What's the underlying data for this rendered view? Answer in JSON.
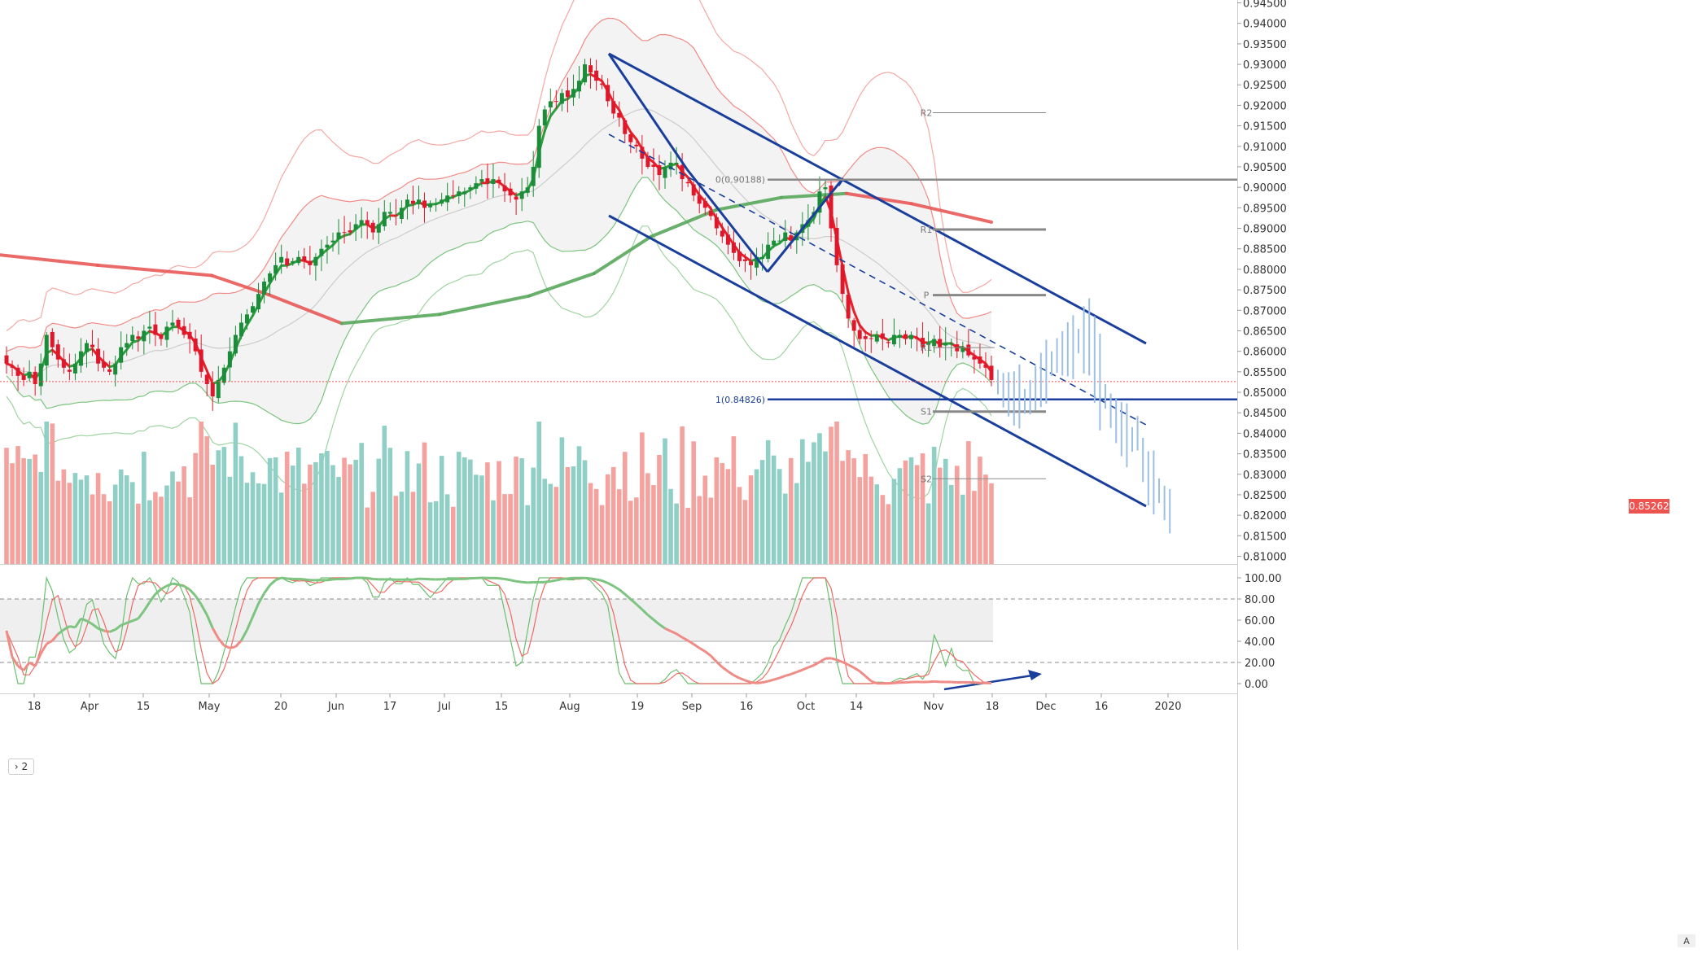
{
  "chart_data": {
    "type": "candlestick",
    "symbol_price": "0.85262",
    "price_axis": {
      "min": 0.81,
      "max": 0.945,
      "ticks": [
        "0.94500",
        "0.94000",
        "0.93500",
        "0.93000",
        "0.92500",
        "0.92000",
        "0.91500",
        "0.91000",
        "0.90500",
        "0.90000",
        "0.89500",
        "0.89000",
        "0.88500",
        "0.88000",
        "0.87500",
        "0.87000",
        "0.86500",
        "0.86000",
        "0.85500",
        "0.85000",
        "0.84500",
        "0.84000",
        "0.83500",
        "0.83000",
        "0.82500",
        "0.82000",
        "0.81500",
        "0.81000"
      ]
    },
    "oscillator_axis": {
      "min": 0,
      "max": 100,
      "ticks": [
        "100.00",
        "80.00",
        "60.00",
        "40.00",
        "20.00",
        "0.00"
      ],
      "dashed_levels": [
        80,
        20
      ],
      "solid_level": 40
    },
    "x_axis": {
      "labels": [
        "18",
        "Apr",
        "15",
        "May",
        "20",
        "Jun",
        "17",
        "Jul",
        "15",
        "Aug",
        "19",
        "Sep",
        "16",
        "Oct",
        "14",
        "Nov",
        "18",
        "Dec",
        "16",
        "2020"
      ]
    },
    "close_series": [
      0.857,
      0.856,
      0.854,
      0.853,
      0.855,
      0.852,
      0.857,
      0.864,
      0.861,
      0.858,
      0.856,
      0.855,
      0.857,
      0.86,
      0.862,
      0.861,
      0.857,
      0.856,
      0.855,
      0.857,
      0.861,
      0.862,
      0.864,
      0.863,
      0.865,
      0.866,
      0.864,
      0.863,
      0.866,
      0.867,
      0.866,
      0.864,
      0.863,
      0.86,
      0.855,
      0.852,
      0.849,
      0.853,
      0.856,
      0.86,
      0.864,
      0.867,
      0.869,
      0.871,
      0.874,
      0.877,
      0.879,
      0.881,
      0.883,
      0.881,
      0.882,
      0.883,
      0.882,
      0.881,
      0.883,
      0.885,
      0.886,
      0.887,
      0.889,
      0.889,
      0.889,
      0.891,
      0.892,
      0.891,
      0.889,
      0.891,
      0.894,
      0.894,
      0.893,
      0.895,
      0.897,
      0.896,
      0.897,
      0.895,
      0.896,
      0.896,
      0.897,
      0.898,
      0.898,
      0.899,
      0.899,
      0.9,
      0.901,
      0.902,
      0.901,
      0.902,
      0.901,
      0.899,
      0.898,
      0.897,
      0.899,
      0.9,
      0.905,
      0.915,
      0.919,
      0.921,
      0.921,
      0.923,
      0.922,
      0.924,
      0.926,
      0.93,
      0.928,
      0.926,
      0.925,
      0.921,
      0.918,
      0.917,
      0.913,
      0.911,
      0.91,
      0.907,
      0.905,
      0.905,
      0.903,
      0.905,
      0.906,
      0.906,
      0.902,
      0.901,
      0.898,
      0.896,
      0.895,
      0.893,
      0.89,
      0.888,
      0.886,
      0.884,
      0.882,
      0.882,
      0.881,
      0.883,
      0.883,
      0.886,
      0.887,
      0.887,
      0.889,
      0.887,
      0.889,
      0.891,
      0.892,
      0.894,
      0.899,
      0.9,
      0.89,
      0.881,
      0.874,
      0.868,
      0.865,
      0.863,
      0.863,
      0.863,
      0.864,
      0.863,
      0.862,
      0.864,
      0.864,
      0.863,
      0.864,
      0.863,
      0.861,
      0.862,
      0.863,
      0.861,
      0.862,
      0.862,
      0.86,
      0.861,
      0.859,
      0.858,
      0.857,
      0.856,
      0.853
    ],
    "series_labels": [
      "price candles",
      "moving averages",
      "bollinger bands",
      "volume",
      "stochastic oscillator"
    ],
    "fib_levels": [
      {
        "label": "0(0.90188)",
        "value": 0.90188
      },
      {
        "label": "1(0.84826)",
        "value": 0.84826
      }
    ],
    "pivot_levels": [
      {
        "label": "R2",
        "value": 0.9182
      },
      {
        "label": "R1",
        "value": 0.8897
      },
      {
        "label": "P",
        "value": 0.8737
      },
      {
        "label": "R1",
        "value": 0.8609
      },
      {
        "label": "S1",
        "value": 0.8453
      },
      {
        "label": "S2",
        "value": 0.8289
      }
    ],
    "current_price": 0.85262
  },
  "ui": {
    "pane_label": "2",
    "price_tag": "0.85262",
    "axis_button": "A",
    "colors": {
      "up": "#26a69a",
      "down": "#ef5350",
      "up_candle": "#1b8c3a",
      "down_candle": "#e0172b",
      "channel": "#1a3e9b",
      "fib": "#1a3e9b",
      "pivot": "#888888",
      "ma_green": "#4caf50",
      "ma_red": "#ef5350"
    }
  }
}
